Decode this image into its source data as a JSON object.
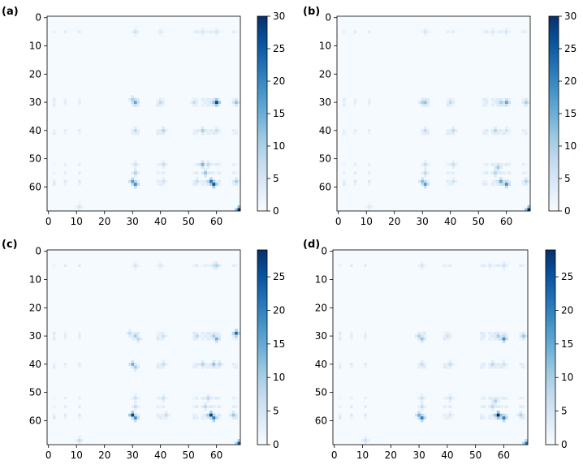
{
  "colors": {
    "cmap": [
      "#f7fbff",
      "#deebf7",
      "#c6dbef",
      "#9ecae1",
      "#6baed6",
      "#4292c6",
      "#2171b5",
      "#08519c",
      "#08306b"
    ],
    "axis": "#000000"
  },
  "chart_data": [
    {
      "type": "heatmap",
      "panel_label": "(a)",
      "matrix_size": 69,
      "xticks": [
        "0",
        "10",
        "20",
        "30",
        "40",
        "50",
        "60"
      ],
      "yticks": [
        "0",
        "10",
        "20",
        "30",
        "40",
        "50",
        "60"
      ],
      "colorbar": {
        "vmin": 0,
        "vmax": 30,
        "ticks": [
          "0",
          "5",
          "10",
          "15",
          "20",
          "25",
          "30"
        ]
      },
      "hot_cells": [
        {
          "r": 5,
          "c": 31,
          "v": 6
        },
        {
          "r": 5,
          "c": 40,
          "v": 4
        },
        {
          "r": 5,
          "c": 55,
          "v": 5
        },
        {
          "r": 5,
          "c": 60,
          "v": 5
        },
        {
          "r": 29,
          "c": 30,
          "v": 10
        },
        {
          "r": 30,
          "c": 31,
          "v": 16
        },
        {
          "r": 30,
          "c": 40,
          "v": 8
        },
        {
          "r": 30,
          "c": 52,
          "v": 7
        },
        {
          "r": 30,
          "c": 59,
          "v": 12
        },
        {
          "r": 30,
          "c": 60,
          "v": 28
        },
        {
          "r": 30,
          "c": 67,
          "v": 12
        },
        {
          "r": 40,
          "c": 31,
          "v": 8
        },
        {
          "r": 40,
          "c": 41,
          "v": 9
        },
        {
          "r": 40,
          "c": 55,
          "v": 10
        },
        {
          "r": 40,
          "c": 60,
          "v": 7
        },
        {
          "r": 52,
          "c": 31,
          "v": 6
        },
        {
          "r": 52,
          "c": 41,
          "v": 7
        },
        {
          "r": 52,
          "c": 55,
          "v": 14
        },
        {
          "r": 52,
          "c": 57,
          "v": 8
        },
        {
          "r": 55,
          "c": 31,
          "v": 9
        },
        {
          "r": 55,
          "c": 56,
          "v": 12
        },
        {
          "r": 58,
          "c": 30,
          "v": 17
        },
        {
          "r": 59,
          "c": 31,
          "v": 19
        },
        {
          "r": 58,
          "c": 41,
          "v": 6
        },
        {
          "r": 58,
          "c": 53,
          "v": 7
        },
        {
          "r": 58,
          "c": 58,
          "v": 22
        },
        {
          "r": 59,
          "c": 59,
          "v": 26
        },
        {
          "r": 58,
          "c": 67,
          "v": 10
        },
        {
          "r": 67,
          "c": 11,
          "v": 5
        },
        {
          "r": 68,
          "c": 68,
          "v": 30
        }
      ]
    },
    {
      "type": "heatmap",
      "panel_label": "(b)",
      "matrix_size": 69,
      "xticks": [
        "0",
        "10",
        "20",
        "30",
        "40",
        "50",
        "60"
      ],
      "yticks": [
        "0",
        "10",
        "20",
        "30",
        "40",
        "50",
        "60"
      ],
      "colorbar": {
        "vmin": 0,
        "vmax": 30,
        "ticks": [
          "0",
          "5",
          "10",
          "15",
          "20",
          "25",
          "30"
        ]
      },
      "hot_cells": [
        {
          "r": 5,
          "c": 31,
          "v": 5
        },
        {
          "r": 5,
          "c": 55,
          "v": 4
        },
        {
          "r": 5,
          "c": 60,
          "v": 5
        },
        {
          "r": 30,
          "c": 30,
          "v": 10
        },
        {
          "r": 30,
          "c": 31,
          "v": 12
        },
        {
          "r": 30,
          "c": 40,
          "v": 8
        },
        {
          "r": 30,
          "c": 58,
          "v": 10
        },
        {
          "r": 30,
          "c": 60,
          "v": 16
        },
        {
          "r": 30,
          "c": 67,
          "v": 10
        },
        {
          "r": 40,
          "c": 31,
          "v": 8
        },
        {
          "r": 40,
          "c": 41,
          "v": 8
        },
        {
          "r": 40,
          "c": 56,
          "v": 9
        },
        {
          "r": 40,
          "c": 60,
          "v": 6
        },
        {
          "r": 52,
          "c": 31,
          "v": 7
        },
        {
          "r": 52,
          "c": 41,
          "v": 7
        },
        {
          "r": 53,
          "c": 57,
          "v": 11
        },
        {
          "r": 55,
          "c": 31,
          "v": 8
        },
        {
          "r": 55,
          "c": 56,
          "v": 9
        },
        {
          "r": 58,
          "c": 30,
          "v": 13
        },
        {
          "r": 59,
          "c": 31,
          "v": 17
        },
        {
          "r": 58,
          "c": 41,
          "v": 6
        },
        {
          "r": 58,
          "c": 58,
          "v": 16
        },
        {
          "r": 59,
          "c": 60,
          "v": 19
        },
        {
          "r": 58,
          "c": 67,
          "v": 9
        },
        {
          "r": 67,
          "c": 11,
          "v": 4
        },
        {
          "r": 68,
          "c": 68,
          "v": 30
        }
      ]
    },
    {
      "type": "heatmap",
      "panel_label": "(c)",
      "matrix_size": 69,
      "xticks": [
        "0",
        "10",
        "20",
        "30",
        "40",
        "50",
        "60"
      ],
      "yticks": [
        "0",
        "10",
        "20",
        "30",
        "40",
        "50",
        "60"
      ],
      "colorbar": {
        "vmin": 0,
        "vmax": 29,
        "ticks": [
          "0",
          "5",
          "10",
          "15",
          "20",
          "25"
        ]
      },
      "hot_cells": [
        {
          "r": 5,
          "c": 31,
          "v": 5
        },
        {
          "r": 5,
          "c": 40,
          "v": 4
        },
        {
          "r": 5,
          "c": 60,
          "v": 9
        },
        {
          "r": 5,
          "c": 59,
          "v": 6
        },
        {
          "r": 29,
          "c": 29,
          "v": 7
        },
        {
          "r": 30,
          "c": 31,
          "v": 10
        },
        {
          "r": 31,
          "c": 32,
          "v": 8
        },
        {
          "r": 30,
          "c": 41,
          "v": 6
        },
        {
          "r": 30,
          "c": 53,
          "v": 8
        },
        {
          "r": 31,
          "c": 60,
          "v": 14
        },
        {
          "r": 30,
          "c": 59,
          "v": 10
        },
        {
          "r": 29,
          "c": 67,
          "v": 22
        },
        {
          "r": 40,
          "c": 30,
          "v": 14
        },
        {
          "r": 41,
          "c": 31,
          "v": 10
        },
        {
          "r": 40,
          "c": 41,
          "v": 7
        },
        {
          "r": 40,
          "c": 55,
          "v": 9
        },
        {
          "r": 40,
          "c": 59,
          "v": 12
        },
        {
          "r": 40,
          "c": 61,
          "v": 8
        },
        {
          "r": 52,
          "c": 31,
          "v": 6
        },
        {
          "r": 52,
          "c": 41,
          "v": 6
        },
        {
          "r": 52,
          "c": 57,
          "v": 8
        },
        {
          "r": 55,
          "c": 31,
          "v": 7
        },
        {
          "r": 55,
          "c": 56,
          "v": 8
        },
        {
          "r": 58,
          "c": 30,
          "v": 27
        },
        {
          "r": 59,
          "c": 31,
          "v": 18
        },
        {
          "r": 58,
          "c": 42,
          "v": 7
        },
        {
          "r": 58,
          "c": 58,
          "v": 27
        },
        {
          "r": 59,
          "c": 59,
          "v": 20
        },
        {
          "r": 58,
          "c": 66,
          "v": 11
        },
        {
          "r": 67,
          "c": 11,
          "v": 7
        },
        {
          "r": 68,
          "c": 68,
          "v": 24
        }
      ]
    },
    {
      "type": "heatmap",
      "panel_label": "(d)",
      "matrix_size": 69,
      "xticks": [
        "0",
        "10",
        "20",
        "30",
        "40",
        "50",
        "60"
      ],
      "yticks": [
        "0",
        "10",
        "20",
        "30",
        "40",
        "50",
        "60"
      ],
      "colorbar": {
        "vmin": 0,
        "vmax": 29,
        "ticks": [
          "0",
          "5",
          "10",
          "15",
          "20",
          "25"
        ]
      },
      "hot_cells": [
        {
          "r": 5,
          "c": 31,
          "v": 5
        },
        {
          "r": 5,
          "c": 55,
          "v": 4
        },
        {
          "r": 5,
          "c": 60,
          "v": 6
        },
        {
          "r": 30,
          "c": 30,
          "v": 9
        },
        {
          "r": 31,
          "c": 31,
          "v": 11
        },
        {
          "r": 30,
          "c": 40,
          "v": 6
        },
        {
          "r": 30,
          "c": 58,
          "v": 10
        },
        {
          "r": 31,
          "c": 60,
          "v": 18
        },
        {
          "r": 30,
          "c": 67,
          "v": 11
        },
        {
          "r": 40,
          "c": 31,
          "v": 7
        },
        {
          "r": 40,
          "c": 41,
          "v": 7
        },
        {
          "r": 40,
          "c": 56,
          "v": 8
        },
        {
          "r": 40,
          "c": 60,
          "v": 6
        },
        {
          "r": 52,
          "c": 31,
          "v": 6
        },
        {
          "r": 52,
          "c": 41,
          "v": 6
        },
        {
          "r": 53,
          "c": 57,
          "v": 9
        },
        {
          "r": 55,
          "c": 31,
          "v": 7
        },
        {
          "r": 55,
          "c": 56,
          "v": 8
        },
        {
          "r": 58,
          "c": 30,
          "v": 14
        },
        {
          "r": 59,
          "c": 31,
          "v": 20
        },
        {
          "r": 58,
          "c": 41,
          "v": 5
        },
        {
          "r": 58,
          "c": 58,
          "v": 29
        },
        {
          "r": 59,
          "c": 60,
          "v": 20
        },
        {
          "r": 58,
          "c": 66,
          "v": 9
        },
        {
          "r": 67,
          "c": 11,
          "v": 6
        },
        {
          "r": 68,
          "c": 68,
          "v": 22
        }
      ]
    }
  ]
}
